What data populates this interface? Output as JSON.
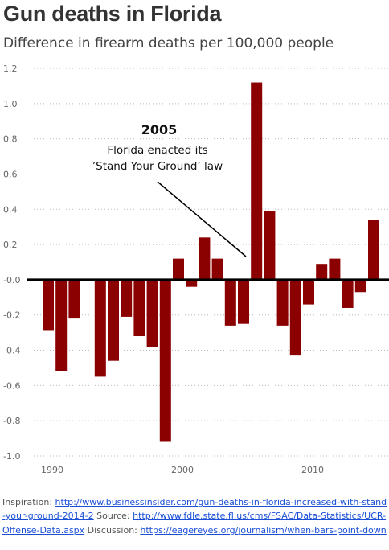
{
  "title": "Gun deaths in Florida",
  "subtitle": "Difference in firearm deaths per 100,000 people",
  "annotation": {
    "year": "2005",
    "line1": "Florida enacted its",
    "line2": "’Stand Your Ground’ law"
  },
  "footer": {
    "inspiration_label": "Inspiration:",
    "inspiration_url": "http://www.businessinsider.com/gun-deaths-in-florida-increased-with-stand-your-ground-2014-2",
    "source_label": "Source:",
    "source_url": "http://www.fdle.state.fl.us/cms/FSAC/Data-Statistics/UCR-Offense-Data.aspx",
    "discussion_label": "Discussion:",
    "discussion_url": "https://eagereyes.org/journalism/when-bars-point-down"
  },
  "chart_data": {
    "type": "bar",
    "title": "Gun deaths in Florida",
    "subtitle": "Difference in firearm deaths per 100,000 people",
    "xlabel": "",
    "ylabel": "",
    "ylim": [
      -1.0,
      1.2
    ],
    "yticks": [
      "1.2",
      "1.0",
      "0.8",
      "0.6",
      "0.4",
      "0.2",
      "-0.0",
      "-0.2",
      "-0.4",
      "-0.6",
      "-0.8",
      "-1.0"
    ],
    "ytick_values": [
      1.2,
      1.0,
      0.8,
      0.6,
      0.4,
      0.2,
      0.0,
      -0.2,
      -0.4,
      -0.6,
      -0.8,
      -1.0
    ],
    "xticks": [
      "1990",
      "2000",
      "2010"
    ],
    "xtick_values": [
      1990,
      2000,
      2010
    ],
    "grid": "horizontal dotted",
    "bar_color": "#8b0000",
    "categories": [
      1990,
      1991,
      1992,
      1993,
      1994,
      1995,
      1996,
      1997,
      1998,
      1999,
      2000,
      2001,
      2002,
      2003,
      2004,
      2005,
      2006,
      2007,
      2008,
      2009,
      2010,
      2011,
      2012,
      2013,
      2014,
      2015,
      2016
    ],
    "values": [
      -0.29,
      -0.52,
      -0.22,
      null,
      -0.55,
      -0.46,
      -0.21,
      -0.32,
      -0.38,
      -0.92,
      0.12,
      -0.04,
      0.24,
      0.12,
      -0.26,
      -0.25,
      1.12,
      0.39,
      -0.26,
      -0.43,
      -0.14,
      0.09,
      0.12,
      -0.16,
      -0.07,
      0.34,
      null
    ]
  }
}
